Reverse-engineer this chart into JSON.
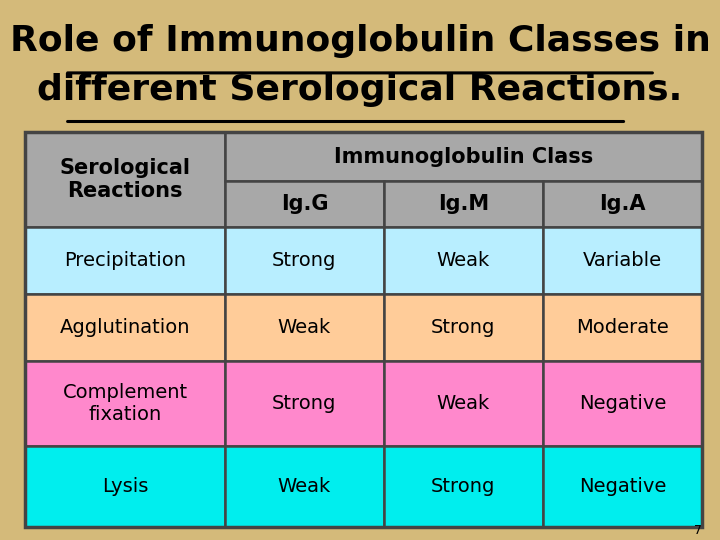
{
  "title_line1": "Role of Immunoglobulin Classes in",
  "title_line2": "different Serological Reactions.",
  "background_color": "#D4BA7A",
  "title_color": "#000000",
  "title_fontsize": 26,
  "header_bg": "#A8A8A8",
  "row_colors": [
    "#A8A8A8",
    "#B8EEFF",
    "#FFCC99",
    "#FF88CC",
    "#00EEEE"
  ],
  "cell_data": [
    [
      "Strong",
      "Weak",
      "Variable"
    ],
    [
      "Weak",
      "Strong",
      "Moderate"
    ],
    [
      "Strong",
      "Weak",
      "Negative"
    ],
    [
      "Weak",
      "Strong",
      "Negative"
    ]
  ],
  "cell_bg_colors": [
    [
      "#B8EEFF",
      "#B8EEFF",
      "#B8EEFF"
    ],
    [
      "#FFCC99",
      "#FFCC99",
      "#FFCC99"
    ],
    [
      "#FF88CC",
      "#FF88CC",
      "#FF88CC"
    ],
    [
      "#00EEEE",
      "#00EEEE",
      "#00EEEE"
    ]
  ],
  "border_color": "#444444",
  "text_color": "#000000",
  "cell_fontsize": 14,
  "header_fontsize": 15,
  "page_number": "7"
}
